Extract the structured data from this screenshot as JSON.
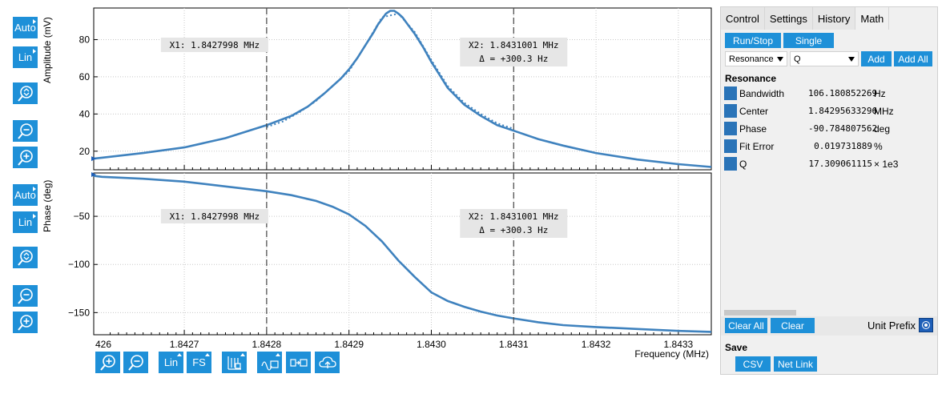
{
  "left_toolbar": {
    "amplitude": {
      "auto_label": "Auto",
      "lin_label": "Lin",
      "ylabel": "Amplitude (mV)"
    },
    "phase": {
      "auto_label": "Auto",
      "lin_label": "Lin",
      "ylabel": "Phase (deg)"
    }
  },
  "bottom_toolbar": {
    "lin_label": "Lin",
    "fs_label": "FS"
  },
  "chart_data": [
    {
      "type": "line",
      "ylabel": "Amplitude (mV)",
      "xlim": [
        1.84259,
        1.84334
      ],
      "ylim": [
        10,
        97
      ],
      "x_ticks": [
        "1.8427",
        "1.8428",
        "1.8429",
        "1.8430",
        "1.8431",
        "1.8432",
        "1.8433"
      ],
      "y_ticks": [
        "20",
        "40",
        "60",
        "80"
      ],
      "grid": true,
      "series": [
        {
          "style": "solid",
          "x": [
            1.84259,
            1.8426,
            1.84265,
            1.8427,
            1.84275,
            1.8428,
            1.84283,
            1.84285,
            1.84287,
            1.84289,
            1.8429,
            1.84291,
            1.84292,
            1.84293,
            1.842935,
            1.84294,
            1.842945,
            1.84295,
            1.842955,
            1.84296,
            1.842965,
            1.84297,
            1.84298,
            1.84299,
            1.843,
            1.84301,
            1.84302,
            1.84304,
            1.84306,
            1.84308,
            1.8431,
            1.84313,
            1.84316,
            1.8432,
            1.84325,
            1.8433,
            1.84334
          ],
          "y": [
            16,
            16.5,
            19,
            22,
            27,
            34,
            39,
            44,
            51,
            59,
            64,
            70,
            77,
            84,
            88,
            91,
            94,
            95.5,
            95.5,
            94,
            92,
            89,
            83,
            76,
            68,
            61,
            54,
            45,
            39,
            34,
            31,
            26.5,
            23,
            19,
            15.5,
            13,
            11.5
          ]
        },
        {
          "style": "dotted",
          "x": [
            1.8428,
            1.84282,
            1.84284,
            1.84286,
            1.84288,
            1.8429,
            1.84292,
            1.84294,
            1.84296,
            1.84298,
            1.843,
            1.84302,
            1.84304,
            1.84306,
            1.84308,
            1.8431
          ],
          "y": [
            33,
            36,
            41,
            47,
            55,
            63,
            77,
            92,
            94,
            84,
            69,
            55,
            46,
            40,
            35,
            32
          ]
        }
      ],
      "markers": [
        {
          "x": 1.8428,
          "label": "X1: 1.8427998 MHz"
        },
        {
          "x": 1.8431,
          "label": "X2: 1.8431001 MHz",
          "delta": "Δ = +300.3 Hz"
        }
      ]
    },
    {
      "type": "line",
      "ylabel": "Phase (deg)",
      "xlabel": "Frequency (MHz)",
      "xlim": [
        1.84259,
        1.84334
      ],
      "ylim": [
        -173,
        -5
      ],
      "x_ticks": [
        "1.8427",
        "1.8428",
        "1.8429",
        "1.8430",
        "1.8431",
        "1.8432",
        "1.8433"
      ],
      "x_edge_tick": "426",
      "y_ticks": [
        "-50",
        "-100",
        "-150"
      ],
      "grid": true,
      "series": [
        {
          "style": "solid",
          "x": [
            1.84259,
            1.8426,
            1.84265,
            1.8427,
            1.84275,
            1.8428,
            1.84283,
            1.84286,
            1.84288,
            1.8429,
            1.84292,
            1.84294,
            1.84296,
            1.84298,
            1.843,
            1.84302,
            1.84304,
            1.84306,
            1.84308,
            1.8431,
            1.84313,
            1.84316,
            1.8432,
            1.84325,
            1.8433,
            1.84334
          ],
          "y": [
            -8,
            -9,
            -11,
            -14,
            -19,
            -24,
            -28,
            -34,
            -40,
            -48,
            -60,
            -76,
            -96,
            -113,
            -129,
            -138,
            -144,
            -149,
            -153,
            -156,
            -160,
            -163,
            -165,
            -167,
            -169,
            -170
          ]
        }
      ],
      "markers": [
        {
          "x": 1.8428,
          "label": "X1: 1.8427998 MHz"
        },
        {
          "x": 1.8431,
          "label": "X2: 1.8431001 MHz",
          "delta": "Δ = +300.3 Hz"
        }
      ]
    }
  ],
  "panel": {
    "tabs": [
      "Control",
      "Settings",
      "History",
      "Math"
    ],
    "active_tab": "Math",
    "run_stop": "Run/Stop",
    "single": "Single",
    "select_model": "Resonance",
    "select_param": "Q",
    "add": "Add",
    "add_all": "Add All",
    "section": "Resonance",
    "results": [
      {
        "name": "Bandwidth",
        "value": "106.180852269",
        "unit": "Hz"
      },
      {
        "name": "Center",
        "value": "1.84295633296",
        "unit": "MHz"
      },
      {
        "name": "Phase",
        "value": "-90.784807562",
        "unit": "deg"
      },
      {
        "name": "Fit Error",
        "value": "0.019731889",
        "unit": "%"
      },
      {
        "name": "Q",
        "value": "17.309061115",
        "unit": "× 1e3"
      }
    ],
    "clear_all": "Clear All",
    "clear": "Clear",
    "unit_prefix": "Unit Prefix",
    "save_heading": "Save",
    "csv": "CSV",
    "net_link": "Net Link"
  },
  "colors": {
    "accent": "#1e90d8",
    "trace": "#3f82be",
    "swatch": "#2a74b8"
  }
}
